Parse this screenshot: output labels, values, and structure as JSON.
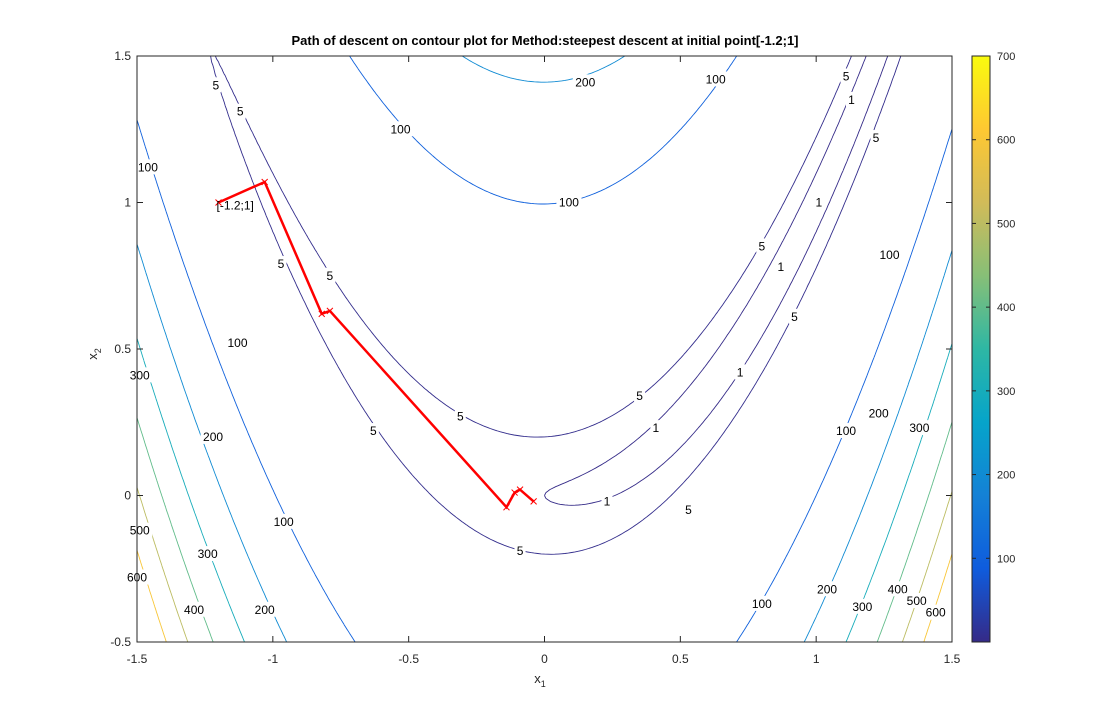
{
  "chart_data": {
    "type": "contour",
    "title": "Path of descent on contour plot for Method:steepest descent  at initial point[-1.2;1]",
    "xlabel": "x",
    "xlabel_sub": "1",
    "ylabel": "x",
    "ylabel_sub": "2",
    "xlim": [
      -1.5,
      1.5
    ],
    "ylim": [
      -0.5,
      1.5
    ],
    "x_ticks": [
      -1.5,
      -1,
      -0.5,
      0,
      0.5,
      1,
      1.5
    ],
    "x_tick_labels": [
      "-1.5",
      "-1",
      "-0.5",
      "0",
      "0.5",
      "1",
      "1.5"
    ],
    "y_ticks": [
      -0.5,
      0,
      0.5,
      1,
      1.5
    ],
    "y_tick_labels": [
      "-0.5",
      "0",
      "0.5",
      "1",
      "1.5"
    ],
    "contour_levels": [
      1,
      5,
      100,
      200,
      300,
      400,
      500,
      600
    ],
    "colorbar": {
      "colormap": "parula",
      "limits": [
        0,
        700
      ],
      "ticks": [
        100,
        200,
        300,
        400,
        500,
        600,
        700
      ],
      "tick_labels": [
        "100",
        "200",
        "300",
        "400",
        "500",
        "600",
        "700"
      ]
    },
    "contour_labels": [
      {
        "text": "200",
        "x": 0.15,
        "y": 1.41
      },
      {
        "text": "100",
        "x": 0.63,
        "y": 1.42
      },
      {
        "text": "100",
        "x": -0.53,
        "y": 1.25
      },
      {
        "text": "100",
        "x": 0.09,
        "y": 1.0
      },
      {
        "text": "100",
        "x": -1.46,
        "y": 1.12
      },
      {
        "text": "100",
        "x": -1.13,
        "y": 0.52
      },
      {
        "text": "100",
        "x": -0.96,
        "y": -0.09
      },
      {
        "text": "100",
        "x": 1.27,
        "y": 0.82
      },
      {
        "text": "100",
        "x": 1.11,
        "y": 0.22
      },
      {
        "text": "100",
        "x": 0.8,
        "y": -0.37
      },
      {
        "text": "200",
        "x": -1.22,
        "y": 0.2
      },
      {
        "text": "200",
        "x": -1.03,
        "y": -0.39
      },
      {
        "text": "200",
        "x": 1.23,
        "y": 0.28
      },
      {
        "text": "200",
        "x": 1.04,
        "y": -0.32
      },
      {
        "text": "300",
        "x": -1.49,
        "y": 0.41
      },
      {
        "text": "300",
        "x": -1.24,
        "y": -0.2
      },
      {
        "text": "300",
        "x": 1.38,
        "y": 0.23
      },
      {
        "text": "300",
        "x": 1.17,
        "y": -0.38
      },
      {
        "text": "400",
        "x": -1.29,
        "y": -0.39
      },
      {
        "text": "400",
        "x": 1.3,
        "y": -0.32
      },
      {
        "text": "500",
        "x": -1.49,
        "y": -0.12
      },
      {
        "text": "500",
        "x": 1.37,
        "y": -0.36
      },
      {
        "text": "600",
        "x": -1.5,
        "y": -0.28
      },
      {
        "text": "600",
        "x": 1.44,
        "y": -0.4
      },
      {
        "text": "5",
        "x": -1.21,
        "y": 1.4
      },
      {
        "text": "5",
        "x": -1.12,
        "y": 1.31
      },
      {
        "text": "5",
        "x": -0.97,
        "y": 0.79
      },
      {
        "text": "5",
        "x": -0.79,
        "y": 0.75
      },
      {
        "text": "5",
        "x": -0.31,
        "y": 0.27
      },
      {
        "text": "5",
        "x": -0.63,
        "y": 0.22
      },
      {
        "text": "5",
        "x": 0.35,
        "y": 0.34
      },
      {
        "text": "5",
        "x": 0.53,
        "y": -0.05
      },
      {
        "text": "5",
        "x": -0.09,
        "y": -0.19
      },
      {
        "text": "5",
        "x": 0.8,
        "y": 0.85
      },
      {
        "text": "5",
        "x": 0.92,
        "y": 0.61
      },
      {
        "text": "5",
        "x": 1.11,
        "y": 1.43
      },
      {
        "text": "5",
        "x": 1.22,
        "y": 1.22
      },
      {
        "text": "1",
        "x": 0.41,
        "y": 0.23
      },
      {
        "text": "1",
        "x": 0.23,
        "y": -0.02
      },
      {
        "text": "1",
        "x": 0.87,
        "y": 0.78
      },
      {
        "text": "1",
        "x": 0.72,
        "y": 0.42
      },
      {
        "text": "1",
        "x": 1.01,
        "y": 1.0
      },
      {
        "text": "1",
        "x": 1.13,
        "y": 1.35
      }
    ],
    "path": {
      "color": "#ff0000",
      "points": [
        [
          -1.2,
          1.0
        ],
        [
          -1.03,
          1.07
        ],
        [
          -0.82,
          0.62
        ],
        [
          -0.79,
          0.63
        ],
        [
          -0.14,
          -0.04
        ],
        [
          -0.11,
          0.01
        ],
        [
          -0.09,
          0.02
        ],
        [
          -0.04,
          -0.02
        ]
      ],
      "start_annotation": "[-1.2;1]"
    }
  }
}
